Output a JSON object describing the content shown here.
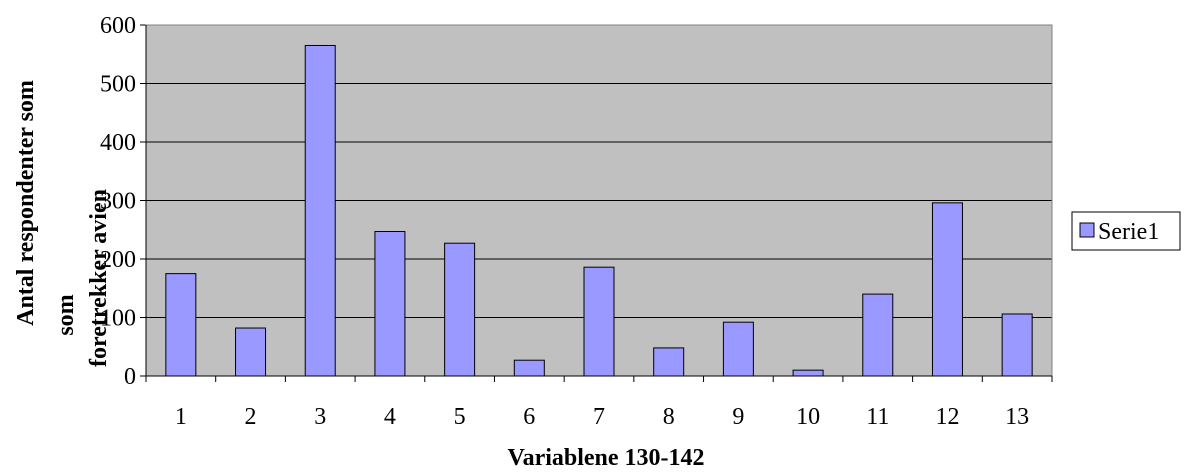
{
  "chart_data": {
    "type": "bar",
    "categories": [
      "1",
      "2",
      "3",
      "4",
      "5",
      "6",
      "7",
      "8",
      "9",
      "10",
      "11",
      "12",
      "13"
    ],
    "series": [
      {
        "name": "Serie1",
        "values": [
          175,
          82,
          565,
          247,
          227,
          27,
          186,
          48,
          92,
          10,
          140,
          296,
          106
        ]
      }
    ],
    "title": "",
    "xlabel": "Variablene 130-142",
    "ylabel_lines": [
      "Antal respondenter som",
      "som",
      "foretrekker avien"
    ],
    "ylim": [
      0,
      600
    ],
    "yticks": [
      0,
      100,
      200,
      300,
      400,
      500,
      600
    ],
    "grid": true,
    "legend_position": "right",
    "colors": {
      "plot_background": "#c0c0c0",
      "bar_fill": "#9999ff",
      "bar_stroke": "#000000",
      "gridline": "#000000"
    }
  }
}
